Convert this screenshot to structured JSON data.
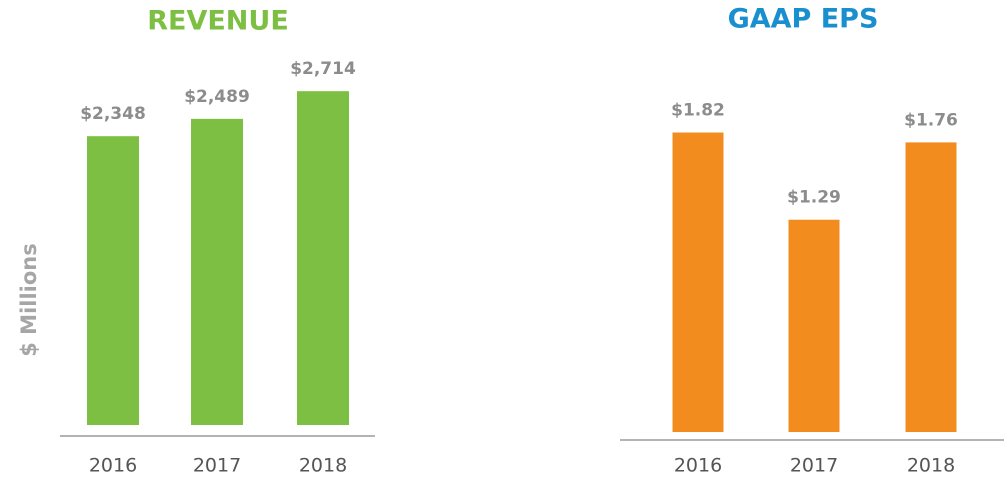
{
  "chart_data": [
    {
      "type": "bar",
      "title": "REVENUE",
      "ylabel": "$ Millions",
      "categories": [
        "2016",
        "2017",
        "2018"
      ],
      "values": [
        2348,
        2489,
        2714
      ],
      "value_labels": [
        "$2,348",
        "$2,489",
        "$2,714"
      ],
      "color": "#7dbf42",
      "title_color": "#7dbf42",
      "ylim": [
        0,
        3000
      ]
    },
    {
      "type": "bar",
      "title": "GAAP EPS",
      "categories": [
        "2016",
        "2017",
        "2018"
      ],
      "values": [
        1.82,
        1.29,
        1.76
      ],
      "value_labels": [
        "$1.82",
        "$1.29",
        "$1.76"
      ],
      "color": "#f28c1f",
      "title_color": "#1a8fd0",
      "ylim": [
        0,
        2.2
      ]
    }
  ]
}
